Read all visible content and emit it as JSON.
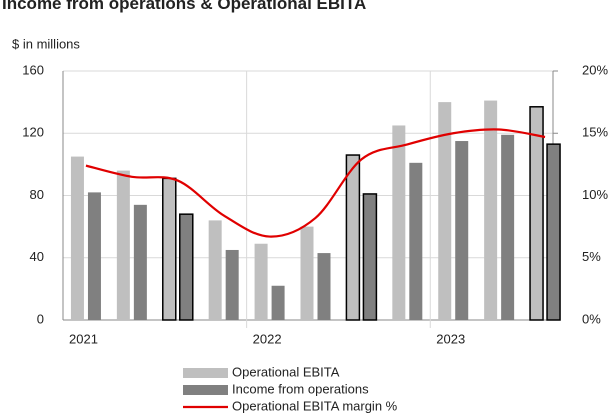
{
  "chart_data": {
    "type": "bar_line",
    "title": "Income from operations & Operational EBITA",
    "subtitle": "$ in millions",
    "categories": [
      "2021",
      null,
      null,
      null,
      "2022",
      null,
      null,
      null,
      "2023",
      null,
      null
    ],
    "outlined": [
      false,
      false,
      true,
      false,
      false,
      false,
      true,
      false,
      false,
      false,
      true
    ],
    "ylim": [
      0,
      160
    ],
    "yticks": [
      0,
      40,
      80,
      120,
      160
    ],
    "y2lim": [
      0,
      20
    ],
    "y2ticks": [
      {
        "value": 0,
        "label": "0%"
      },
      {
        "value": 5,
        "label": "5%"
      },
      {
        "value": 10,
        "label": "10%"
      },
      {
        "value": 15,
        "label": "15%"
      },
      {
        "value": 20,
        "label": "20%"
      }
    ],
    "grid": true,
    "legend": "bottom",
    "series": [
      {
        "name": "Operational EBITA",
        "type": "bar",
        "color": "#bfbfbf",
        "values": [
          105,
          96,
          91,
          64,
          49,
          60,
          106,
          125,
          140,
          141,
          137
        ]
      },
      {
        "name": "Income from operations",
        "type": "bar",
        "color": "#808080",
        "values": [
          82,
          74,
          68,
          45,
          22,
          43,
          81,
          101,
          115,
          119,
          113
        ]
      },
      {
        "name": "Operational EBITA margin %",
        "type": "line",
        "axis": "y2",
        "color": "#e00000",
        "values": [
          12.4,
          11.5,
          11.2,
          8.4,
          6.7,
          8.2,
          12.9,
          14.1,
          15.0,
          15.3,
          14.7
        ]
      }
    ]
  }
}
